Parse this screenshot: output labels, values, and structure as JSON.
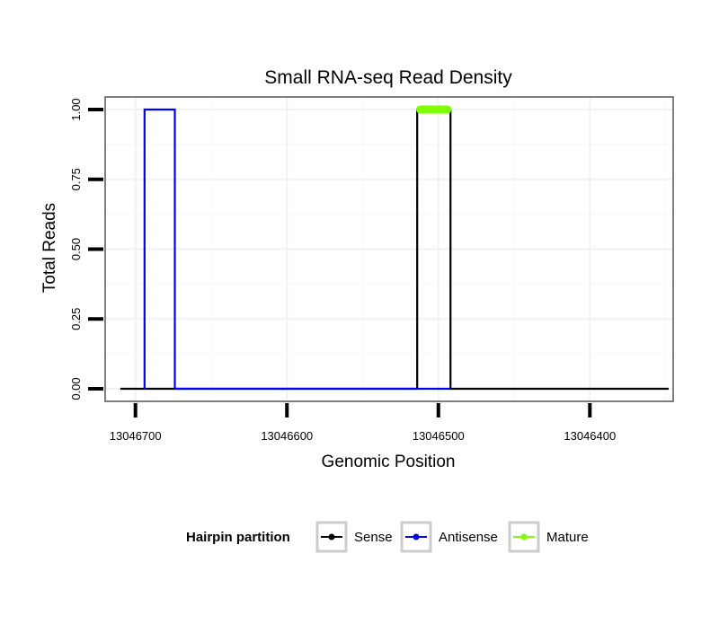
{
  "chart_data": {
    "type": "line",
    "title": "Small RNA-seq Read Density",
    "xlabel": "Genomic Position",
    "ylabel": "Total Reads",
    "x_reversed": true,
    "xlim": [
      13046720,
      13046345
    ],
    "ylim": [
      -0.045,
      1.045
    ],
    "x_ticks": [
      13046700,
      13046600,
      13046500,
      13046400
    ],
    "x_tick_labels": [
      "13046700",
      "13046600",
      "13046500",
      "13046400"
    ],
    "y_ticks": [
      0,
      0.25,
      0.5,
      0.75,
      1
    ],
    "y_tick_labels": [
      "0.00",
      "0.25",
      "0.50",
      "0.75",
      "1.00"
    ],
    "grid": true,
    "legend": {
      "title": "Hairpin partition",
      "position": "bottom",
      "entries": [
        {
          "label": "Sense",
          "color": "#000000"
        },
        {
          "label": "Antisense",
          "color": "#0000ee"
        },
        {
          "label": "Mature",
          "color": "#7fff00"
        }
      ]
    },
    "series": [
      {
        "name": "Sense",
        "color": "#000000",
        "x": [
          13046710,
          13046514,
          13046514,
          13046492,
          13046492,
          13046348
        ],
        "y": [
          0,
          0,
          1,
          1,
          0,
          0
        ]
      },
      {
        "name": "Antisense",
        "color": "#0000ee",
        "x": [
          13046694,
          13046694,
          13046674,
          13046674,
          13046514,
          13046492
        ],
        "y": [
          0,
          1,
          1,
          0,
          0,
          0
        ]
      },
      {
        "name": "Mature",
        "color": "#7fff00",
        "x": [
          13046512,
          13046494
        ],
        "y": [
          1,
          1
        ]
      }
    ]
  }
}
